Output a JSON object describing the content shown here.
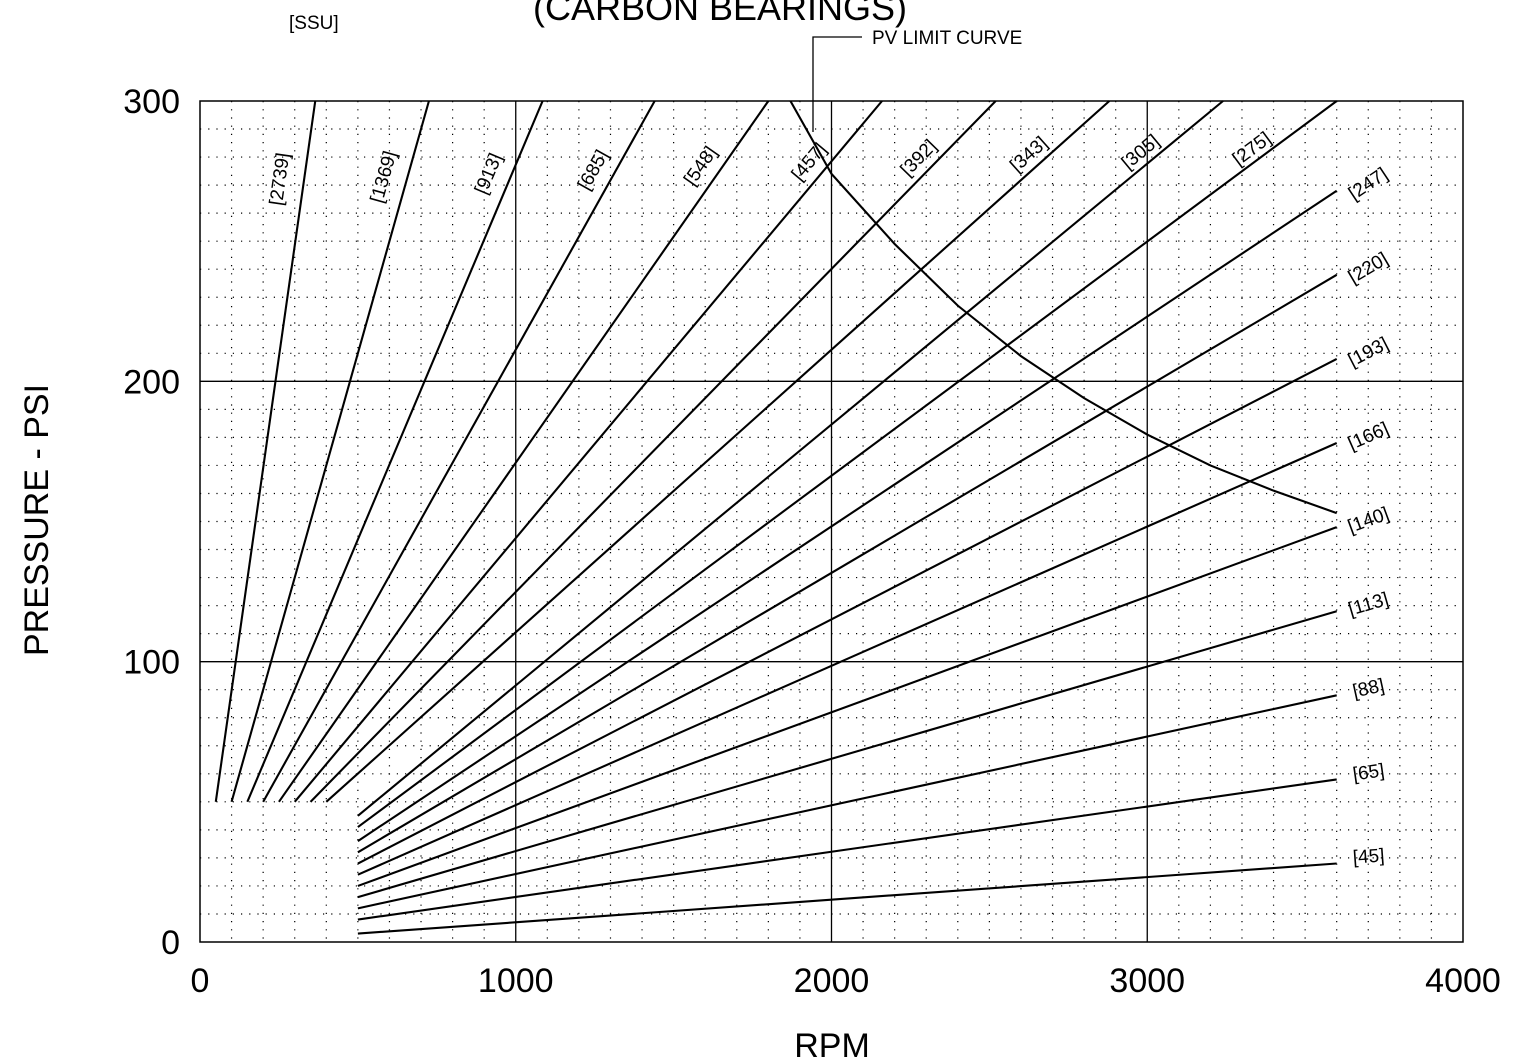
{
  "chart_data": {
    "type": "line",
    "title": "(CARBON BEARINGS)",
    "xlabel": "RPM",
    "ylabel": "PRESSURE - PSI",
    "units_label": "[SSU]",
    "xlim": [
      0,
      4000
    ],
    "ylim": [
      0,
      300
    ],
    "x_ticks": [
      "0",
      "1000",
      "2000",
      "3000",
      "4000"
    ],
    "y_ticks": [
      "0",
      "100",
      "200",
      "300"
    ],
    "grid": true,
    "series": [
      {
        "name": "[2739]",
        "points": [
          [
            50,
            50
          ],
          [
            365,
            300
          ]
        ]
      },
      {
        "name": "[1369]",
        "points": [
          [
            100,
            50
          ],
          [
            725,
            300
          ]
        ]
      },
      {
        "name": "[913]",
        "points": [
          [
            150,
            50
          ],
          [
            1085,
            300
          ]
        ]
      },
      {
        "name": "[685]",
        "points": [
          [
            200,
            50
          ],
          [
            1440,
            300
          ]
        ]
      },
      {
        "name": "[548]",
        "points": [
          [
            250,
            50
          ],
          [
            1800,
            300
          ]
        ]
      },
      {
        "name": "[457]",
        "points": [
          [
            300,
            50
          ],
          [
            2160,
            300
          ]
        ]
      },
      {
        "name": "[392]",
        "points": [
          [
            350,
            50
          ],
          [
            2520,
            300
          ]
        ]
      },
      {
        "name": "[343]",
        "points": [
          [
            400,
            50
          ],
          [
            2880,
            300
          ]
        ]
      },
      {
        "name": "[305]",
        "points": [
          [
            500,
            45
          ],
          [
            3240,
            300
          ]
        ]
      },
      {
        "name": "[275]",
        "points": [
          [
            500,
            41
          ],
          [
            3600,
            300
          ]
        ]
      },
      {
        "name": "[247]",
        "points": [
          [
            500,
            36
          ],
          [
            3600,
            268
          ]
        ]
      },
      {
        "name": "[220]",
        "points": [
          [
            500,
            32
          ],
          [
            3600,
            238
          ]
        ]
      },
      {
        "name": "[193]",
        "points": [
          [
            500,
            28
          ],
          [
            3600,
            208
          ]
        ]
      },
      {
        "name": "[166]",
        "points": [
          [
            500,
            24
          ],
          [
            3600,
            178
          ]
        ]
      },
      {
        "name": "[140]",
        "points": [
          [
            500,
            20
          ],
          [
            3600,
            148
          ]
        ]
      },
      {
        "name": "[113]",
        "points": [
          [
            500,
            16
          ],
          [
            3600,
            118
          ]
        ]
      },
      {
        "name": "[88]",
        "points": [
          [
            500,
            12
          ],
          [
            3600,
            88
          ]
        ]
      },
      {
        "name": "[65]",
        "points": [
          [
            500,
            8
          ],
          [
            3600,
            58
          ]
        ]
      },
      {
        "name": "[45]",
        "points": [
          [
            500,
            3
          ],
          [
            3600,
            28
          ]
        ]
      }
    ],
    "annotation": {
      "text": "PV LIMIT CURVE",
      "curve": [
        [
          1870,
          300
        ],
        [
          2000,
          274
        ],
        [
          2200,
          249
        ],
        [
          2400,
          227
        ],
        [
          2600,
          209
        ],
        [
          2800,
          194
        ],
        [
          3000,
          181
        ],
        [
          3200,
          170
        ],
        [
          3400,
          161
        ],
        [
          3600,
          153
        ]
      ]
    }
  }
}
